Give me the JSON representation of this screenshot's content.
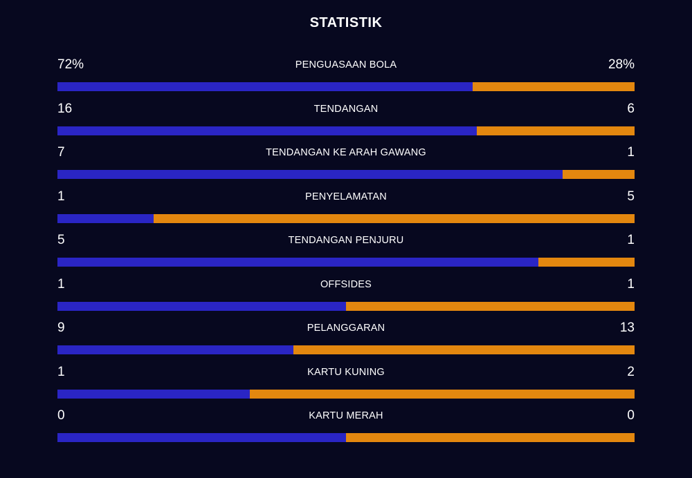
{
  "title": "STATISTIK",
  "colors": {
    "home": "#2a25c4",
    "away": "#e3870f",
    "background": "#07081f"
  },
  "stats": [
    {
      "label": "PENGUASAAN BOLA",
      "home": "72%",
      "away": "28%",
      "home_share": 0.72
    },
    {
      "label": "TENDANGAN",
      "home": "16",
      "away": "6",
      "home_share": 0.727
    },
    {
      "label": "TENDANGAN KE ARAH GAWANG",
      "home": "7",
      "away": "1",
      "home_share": 0.875
    },
    {
      "label": "PENYELAMATAN",
      "home": "1",
      "away": "5",
      "home_share": 0.167
    },
    {
      "label": "TENDANGAN PENJURU",
      "home": "5",
      "away": "1",
      "home_share": 0.833
    },
    {
      "label": "OFFSIDES",
      "home": "1",
      "away": "1",
      "home_share": 0.5
    },
    {
      "label": "PELANGGARAN",
      "home": "9",
      "away": "13",
      "home_share": 0.409
    },
    {
      "label": "KARTU KUNING",
      "home": "1",
      "away": "2",
      "home_share": 0.333
    },
    {
      "label": "KARTU MERAH",
      "home": "0",
      "away": "0",
      "home_share": 0.5
    }
  ]
}
